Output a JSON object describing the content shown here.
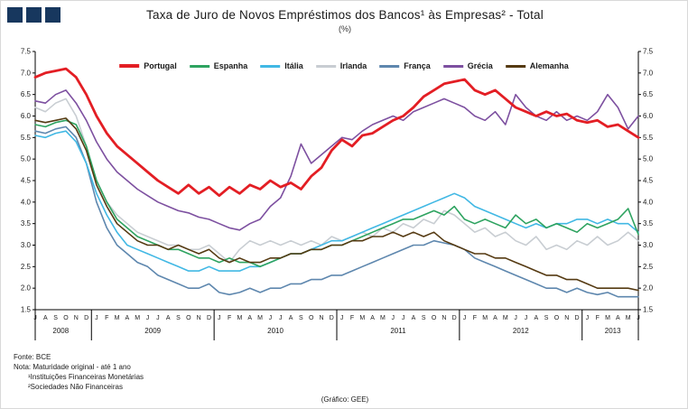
{
  "header": {
    "title": "Taxa de Juro de Novos Empréstimos dos Bancos¹ às Empresas² - Total",
    "subtitle": "(%)"
  },
  "footer": {
    "lines": [
      "Fonte: BCE",
      "Nota: Maturidade original - até 1 ano",
      "¹Instituições Financeiras Monetárias",
      "²Sociedades Não Financeiras"
    ],
    "credit": "(Gráfico:  GEE)"
  },
  "chart_data": {
    "type": "line",
    "title": "Taxa de Juro de Novos Empréstimos dos Bancos¹ às Empresas² - Total",
    "subtitle": "(%)",
    "ylabel": "%",
    "ylim": [
      1.5,
      7.5
    ],
    "ytick_step": 0.5,
    "grid": false,
    "legend_position": "top-center-inside",
    "month_labels": [
      "J",
      "A",
      "S",
      "O",
      "N",
      "D",
      "J",
      "F",
      "M",
      "A",
      "M",
      "J",
      "J",
      "A",
      "S",
      "O",
      "N",
      "D",
      "J",
      "F",
      "M",
      "A",
      "M",
      "J",
      "J",
      "A",
      "S",
      "O",
      "N",
      "D",
      "J",
      "F",
      "M",
      "A",
      "M",
      "J",
      "J",
      "A",
      "S",
      "O",
      "N",
      "D",
      "J",
      "F",
      "M",
      "A",
      "M",
      "J",
      "J",
      "A",
      "S",
      "O",
      "N",
      "D",
      "J",
      "F",
      "M",
      "A",
      "M",
      "J"
    ],
    "year_groups": [
      {
        "label": "2008",
        "count": 6
      },
      {
        "label": "2009",
        "count": 12
      },
      {
        "label": "2010",
        "count": 12
      },
      {
        "label": "2011",
        "count": 12
      },
      {
        "label": "2012",
        "count": 12
      },
      {
        "label": "2013",
        "count": 6
      }
    ],
    "series": [
      {
        "name": "Portugal",
        "color": "#e31e24",
        "width": 2.8,
        "values": [
          6.9,
          7.0,
          7.05,
          7.1,
          6.9,
          6.5,
          6.0,
          5.6,
          5.3,
          5.1,
          4.9,
          4.7,
          4.5,
          4.35,
          4.2,
          4.4,
          4.2,
          4.35,
          4.15,
          4.35,
          4.2,
          4.4,
          4.3,
          4.5,
          4.35,
          4.45,
          4.3,
          4.6,
          4.8,
          5.2,
          5.45,
          5.3,
          5.55,
          5.6,
          5.75,
          5.9,
          6.0,
          6.2,
          6.45,
          6.6,
          6.75,
          6.8,
          6.85,
          6.6,
          6.5,
          6.6,
          6.4,
          6.2,
          6.1,
          6.0,
          6.1,
          6.0,
          6.05,
          5.9,
          5.85,
          5.9,
          5.75,
          5.8,
          5.65,
          5.5
        ]
      },
      {
        "name": "Espanha",
        "color": "#2ea360",
        "width": 1.6,
        "values": [
          5.8,
          5.75,
          5.85,
          5.9,
          5.8,
          5.3,
          4.5,
          4.0,
          3.6,
          3.4,
          3.2,
          3.1,
          3.0,
          2.9,
          2.9,
          2.8,
          2.7,
          2.7,
          2.6,
          2.7,
          2.6,
          2.6,
          2.5,
          2.6,
          2.7,
          2.8,
          2.8,
          2.9,
          2.9,
          3.0,
          3.0,
          3.1,
          3.2,
          3.3,
          3.4,
          3.5,
          3.6,
          3.6,
          3.7,
          3.8,
          3.7,
          3.9,
          3.6,
          3.5,
          3.6,
          3.5,
          3.4,
          3.7,
          3.5,
          3.6,
          3.4,
          3.5,
          3.4,
          3.3,
          3.5,
          3.4,
          3.5,
          3.6,
          3.85,
          3.25
        ]
      },
      {
        "name": "Itália",
        "color": "#41b8e4",
        "width": 1.6,
        "values": [
          5.55,
          5.5,
          5.6,
          5.65,
          5.4,
          4.9,
          4.2,
          3.7,
          3.3,
          3.0,
          2.9,
          2.8,
          2.7,
          2.6,
          2.5,
          2.4,
          2.4,
          2.5,
          2.4,
          2.4,
          2.4,
          2.5,
          2.5,
          2.6,
          2.7,
          2.8,
          2.8,
          2.9,
          3.0,
          3.1,
          3.1,
          3.2,
          3.3,
          3.4,
          3.5,
          3.6,
          3.7,
          3.8,
          3.9,
          4.0,
          4.1,
          4.2,
          4.1,
          3.9,
          3.8,
          3.7,
          3.6,
          3.5,
          3.4,
          3.5,
          3.4,
          3.5,
          3.5,
          3.6,
          3.6,
          3.5,
          3.6,
          3.5,
          3.5,
          3.3
        ]
      },
      {
        "name": "Irlanda",
        "color": "#c8cdd2",
        "width": 1.6,
        "values": [
          6.2,
          6.1,
          6.3,
          6.4,
          6.0,
          5.3,
          4.5,
          4.0,
          3.7,
          3.5,
          3.3,
          3.2,
          3.1,
          3.0,
          3.0,
          2.9,
          2.9,
          3.0,
          2.8,
          2.6,
          2.9,
          3.1,
          3.0,
          3.1,
          3.0,
          3.1,
          3.0,
          3.1,
          3.0,
          3.2,
          3.1,
          3.2,
          3.3,
          3.2,
          3.4,
          3.3,
          3.5,
          3.4,
          3.6,
          3.5,
          3.8,
          3.7,
          3.5,
          3.3,
          3.4,
          3.2,
          3.3,
          3.1,
          3.0,
          3.2,
          2.9,
          3.0,
          2.9,
          3.1,
          3.0,
          3.2,
          3.0,
          3.1,
          3.3,
          3.1
        ]
      },
      {
        "name": "França",
        "color": "#5e87ae",
        "width": 1.6,
        "values": [
          5.65,
          5.6,
          5.7,
          5.75,
          5.5,
          4.9,
          4.0,
          3.4,
          3.0,
          2.8,
          2.6,
          2.5,
          2.3,
          2.2,
          2.1,
          2.0,
          2.0,
          2.1,
          1.9,
          1.85,
          1.9,
          2.0,
          1.9,
          2.0,
          2.0,
          2.1,
          2.1,
          2.2,
          2.2,
          2.3,
          2.3,
          2.4,
          2.5,
          2.6,
          2.7,
          2.8,
          2.9,
          3.0,
          3.0,
          3.1,
          3.05,
          3.0,
          2.9,
          2.7,
          2.6,
          2.5,
          2.4,
          2.3,
          2.2,
          2.1,
          2.0,
          2.0,
          1.9,
          2.0,
          1.9,
          1.85,
          1.9,
          1.8,
          1.8,
          1.8
        ]
      },
      {
        "name": "Grécia",
        "color": "#7d50a0",
        "width": 1.6,
        "values": [
          6.35,
          6.3,
          6.5,
          6.6,
          6.3,
          5.9,
          5.4,
          5.0,
          4.7,
          4.5,
          4.3,
          4.15,
          4.0,
          3.9,
          3.8,
          3.75,
          3.65,
          3.6,
          3.5,
          3.4,
          3.35,
          3.5,
          3.6,
          3.9,
          4.1,
          4.6,
          5.35,
          4.9,
          5.1,
          5.3,
          5.5,
          5.45,
          5.65,
          5.8,
          5.9,
          6.0,
          5.9,
          6.1,
          6.2,
          6.3,
          6.4,
          6.3,
          6.2,
          6.0,
          5.9,
          6.1,
          5.8,
          6.5,
          6.2,
          6.0,
          5.9,
          6.1,
          5.9,
          6.0,
          5.9,
          6.1,
          6.5,
          6.2,
          5.7,
          6.0
        ]
      },
      {
        "name": "Alemanha",
        "color": "#553a12",
        "width": 1.6,
        "values": [
          5.9,
          5.85,
          5.9,
          5.95,
          5.7,
          5.2,
          4.4,
          3.9,
          3.5,
          3.3,
          3.1,
          3.0,
          3.0,
          2.9,
          3.0,
          2.9,
          2.8,
          2.9,
          2.7,
          2.6,
          2.7,
          2.6,
          2.6,
          2.7,
          2.7,
          2.8,
          2.8,
          2.9,
          2.9,
          3.0,
          3.0,
          3.1,
          3.1,
          3.2,
          3.2,
          3.3,
          3.2,
          3.3,
          3.2,
          3.3,
          3.1,
          3.0,
          2.9,
          2.8,
          2.8,
          2.7,
          2.7,
          2.6,
          2.5,
          2.4,
          2.3,
          2.3,
          2.2,
          2.2,
          2.1,
          2.0,
          2.0,
          2.0,
          2.0,
          1.95
        ]
      }
    ]
  }
}
